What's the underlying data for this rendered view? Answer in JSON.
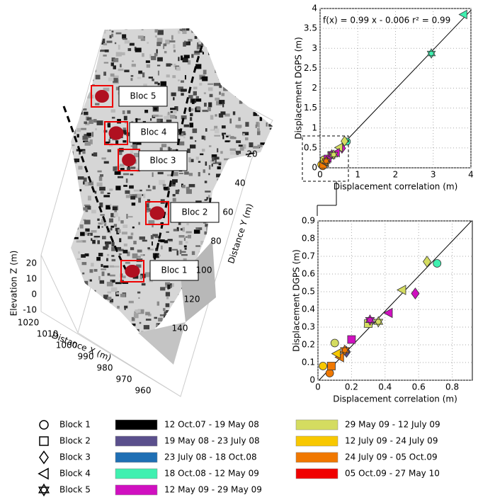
{
  "scene": {
    "blocs": [
      "Bloc 1",
      "Bloc 2",
      "Bloc 3",
      "Bloc 4",
      "Bloc 5"
    ],
    "z_label": "Elevation Z (m)",
    "x_label": "Distance X (m)",
    "y_label": "Distance Y (m)",
    "z_ticks": [
      20,
      10,
      0,
      -10
    ],
    "x_ticks": [
      1020,
      1010,
      1000,
      990,
      980,
      970,
      960
    ],
    "y_ticks": [
      20,
      40,
      60,
      80,
      100,
      120,
      140
    ]
  },
  "chart_data": [
    {
      "type": "scatter",
      "xlabel": "Displacement correlation (m)",
      "ylabel": "Displacement DGPS (m)",
      "annotation": "f(x) = 0.99 x - 0.006   r² = 0.99",
      "fit": {
        "slope": 0.99,
        "intercept": -0.006
      },
      "xlim": [
        0,
        4
      ],
      "ylim": [
        0,
        4
      ],
      "xticks": [
        0,
        1,
        2,
        3,
        4
      ],
      "yticks": [
        0,
        0.5,
        1,
        1.5,
        2,
        2.5,
        3,
        3.5,
        4
      ],
      "grid": true,
      "series": [
        {
          "name": "Block 1",
          "marker": "circle",
          "x": [
            0.71,
            0.03,
            0.07,
            0.1
          ],
          "values": [
            0.66,
            0.08,
            0.04,
            0.21
          ],
          "colors": [
            "#40f0b0",
            "#f8c800",
            "#f07800",
            "#d4dc60"
          ]
        },
        {
          "name": "Block 2",
          "marker": "square",
          "x": [
            0.3,
            0.2,
            0.08
          ],
          "values": [
            0.32,
            0.23,
            0.08
          ],
          "colors": [
            "#d4dc60",
            "#d010c0",
            "#f07800"
          ]
        },
        {
          "name": "Block 3",
          "marker": "diamond",
          "x": [
            0.65,
            0.58,
            0.17
          ],
          "values": [
            0.67,
            0.49,
            0.16
          ],
          "colors": [
            "#d4dc60",
            "#d010c0",
            "#5a4f8c"
          ]
        },
        {
          "name": "Block 4",
          "marker": "triangle-left",
          "x": [
            0.5,
            0.42,
            0.13,
            0.11,
            3.8
          ],
          "values": [
            0.51,
            0.38,
            0.13,
            0.15,
            3.85
          ],
          "colors": [
            "#d4dc60",
            "#d010c0",
            "#f07800",
            "#f8c800",
            "#40f0b0"
          ]
        },
        {
          "name": "Block 5",
          "marker": "star",
          "x": [
            0.31,
            0.36,
            0.16,
            2.95
          ],
          "values": [
            0.34,
            0.33,
            0.17,
            2.87
          ],
          "colors": [
            "#d010c0",
            "#d4dc60",
            "#f07800",
            "#40f0b0"
          ]
        }
      ]
    },
    {
      "type": "scatter",
      "xlabel": "Displacement correlation (m)",
      "ylabel": "Displacement DGPS (m)",
      "fit": {
        "slope": 0.99,
        "intercept": -0.006
      },
      "xlim": [
        0,
        0.92
      ],
      "ylim": [
        0,
        0.9
      ],
      "xticks": [
        0,
        0.2,
        0.4,
        0.6,
        0.8
      ],
      "yticks": [
        0,
        0.1,
        0.2,
        0.3,
        0.4,
        0.5,
        0.6,
        0.7,
        0.8,
        0.9
      ],
      "grid": true,
      "series": [
        {
          "name": "Block 1",
          "marker": "circle",
          "x": [
            0.71,
            0.03,
            0.07,
            0.1
          ],
          "values": [
            0.66,
            0.08,
            0.04,
            0.21
          ],
          "colors": [
            "#40f0b0",
            "#f8c800",
            "#f07800",
            "#d4dc60"
          ]
        },
        {
          "name": "Block 2",
          "marker": "square",
          "x": [
            0.3,
            0.2,
            0.08
          ],
          "values": [
            0.32,
            0.23,
            0.08
          ],
          "colors": [
            "#d4dc60",
            "#d010c0",
            "#f07800"
          ]
        },
        {
          "name": "Block 3",
          "marker": "diamond",
          "x": [
            0.65,
            0.58,
            0.17
          ],
          "values": [
            0.67,
            0.49,
            0.16
          ],
          "colors": [
            "#d4dc60",
            "#d010c0",
            "#5a4f8c"
          ]
        },
        {
          "name": "Block 4",
          "marker": "triangle-left",
          "x": [
            0.5,
            0.42,
            0.13,
            0.11
          ],
          "values": [
            0.51,
            0.38,
            0.13,
            0.15
          ],
          "colors": [
            "#d4dc60",
            "#d010c0",
            "#f07800",
            "#f8c800"
          ]
        },
        {
          "name": "Block 5",
          "marker": "star",
          "x": [
            0.31,
            0.36,
            0.16
          ],
          "values": [
            0.34,
            0.33,
            0.17
          ],
          "colors": [
            "#d010c0",
            "#d4dc60",
            "#f07800"
          ]
        }
      ]
    }
  ],
  "period_legend": [
    {
      "name": "12 Oct.07 - 19 May 08",
      "color": "#000000"
    },
    {
      "name": "19 May 08 - 23 July 08",
      "color": "#5a4f8c"
    },
    {
      "name": "23 July 08 - 18 Oct.08",
      "color": "#1f6fb4"
    },
    {
      "name": "18 Oct.08 - 12 May 09",
      "color": "#40f0b0"
    },
    {
      "name": "12 May 09 - 29 May 09",
      "color": "#d010c0"
    },
    {
      "name": "29 May 09 - 12 July 09",
      "color": "#d4dc60"
    },
    {
      "name": "12 July 09 - 24 July 09",
      "color": "#f8c800"
    },
    {
      "name": "24 July 09 - 05 Oct.09",
      "color": "#f07800"
    },
    {
      "name": "05 Oct.09 - 27 May 10",
      "color": "#f00000"
    }
  ]
}
